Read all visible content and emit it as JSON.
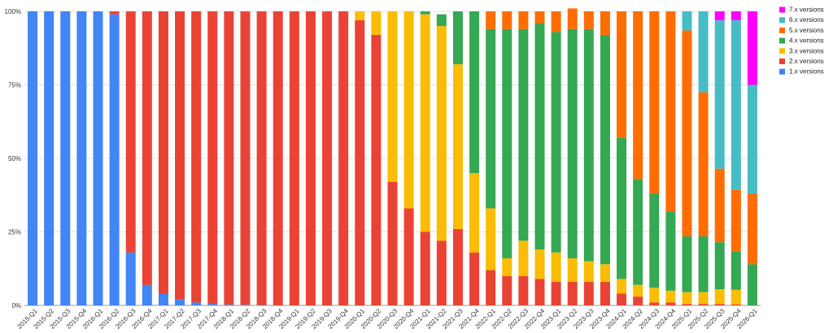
{
  "chart_data": {
    "type": "bar",
    "stacked": true,
    "normalized": true,
    "ylim": [
      0,
      100
    ],
    "y_ticks": [
      "0%",
      "25%",
      "50%",
      "75%",
      "100%"
    ],
    "grid": true,
    "legend_position": "top-right",
    "categories": [
      "2015-Q1",
      "2015-Q2",
      "2015-Q3",
      "2015-Q4",
      "2016-Q1",
      "2016-Q2",
      "2016-Q3",
      "2016-Q4",
      "2017-Q1",
      "2017-Q2",
      "2017-Q3",
      "2017-Q4",
      "2018-Q1",
      "2018-Q2",
      "2018-Q3",
      "2018-Q4",
      "2019-Q1",
      "2019-Q2",
      "2019-Q3",
      "2019-Q4",
      "2020-Q1",
      "2020-Q2",
      "2020-Q3",
      "2020-Q4",
      "2021-Q1",
      "2021-Q2",
      "2021-Q3",
      "2021-Q4",
      "2022-Q1",
      "2022-Q2",
      "2022-Q3",
      "2022-Q4",
      "2023-Q1",
      "2023-Q2",
      "2023-Q3",
      "2023-Q4",
      "2024-Q1",
      "2024-Q2",
      "2024-Q3",
      "2024-Q4",
      "2025-Q1",
      "2025-Q2",
      "2025-Q3",
      "2025-Q4",
      "2026-Q1"
    ],
    "series": [
      {
        "name": "1.x versions",
        "color": "#4285f4",
        "values": [
          100,
          100,
          100,
          100,
          100,
          99,
          18,
          7,
          4,
          2,
          1,
          0.5,
          0.3,
          0.2,
          0.1,
          0,
          0,
          0,
          0,
          0,
          0,
          0,
          0,
          0,
          0,
          0,
          0,
          0,
          0,
          0,
          0,
          0,
          0,
          0,
          0,
          0,
          0,
          0,
          0,
          0,
          0,
          0,
          0,
          0,
          0
        ]
      },
      {
        "name": "2.x versions",
        "color": "#ea4335",
        "values": [
          0,
          0,
          0,
          0,
          0,
          1,
          82,
          93,
          96,
          98,
          99,
          99.5,
          99.7,
          99.8,
          99.9,
          100,
          100,
          100,
          100,
          100,
          97,
          92,
          42,
          33,
          25,
          22,
          26,
          18,
          12,
          10,
          10,
          9,
          8,
          8,
          8,
          8,
          4,
          3,
          1,
          1,
          0.5,
          0.5,
          0.5,
          0.3,
          0
        ]
      },
      {
        "name": "3.x versions",
        "color": "#fbbc04",
        "values": [
          0,
          0,
          0,
          0,
          0,
          0,
          0,
          0,
          0,
          0,
          0,
          0,
          0,
          0,
          0,
          0,
          0,
          0,
          0,
          0,
          3,
          8,
          58,
          67,
          74,
          73,
          56,
          27,
          21,
          6,
          12,
          10,
          10,
          8,
          7,
          6,
          5,
          4,
          5,
          4,
          4,
          4,
          5,
          5,
          0
        ]
      },
      {
        "name": "4.x versions",
        "color": "#34a853",
        "values": [
          0,
          0,
          0,
          0,
          0,
          0,
          0,
          0,
          0,
          0,
          0,
          0,
          0,
          0,
          0,
          0,
          0,
          0,
          0,
          0,
          0,
          0,
          0,
          0,
          1,
          4,
          18,
          55,
          61,
          78,
          72,
          77,
          75,
          78,
          79,
          78,
          48,
          36,
          32,
          27,
          19,
          19,
          16,
          13,
          14
        ]
      },
      {
        "name": "5.x versions",
        "color": "#ff6d01",
        "values": [
          0,
          0,
          0,
          0,
          0,
          0,
          0,
          0,
          0,
          0,
          0,
          0,
          0,
          0,
          0,
          0,
          0,
          0,
          0,
          0,
          0,
          0,
          0,
          0,
          0,
          0,
          0,
          0,
          6,
          6,
          6,
          4,
          7,
          7,
          6,
          8,
          43,
          57,
          62,
          68,
          70,
          49,
          25,
          21,
          24
        ]
      },
      {
        "name": "6.x versions",
        "color": "#46bdc6",
        "values": [
          0,
          0,
          0,
          0,
          0,
          0,
          0,
          0,
          0,
          0,
          0,
          0,
          0,
          0,
          0,
          0,
          0,
          0,
          0,
          0,
          0,
          0,
          0,
          0,
          0,
          0,
          0,
          0,
          0,
          0,
          0,
          0,
          0,
          0,
          0,
          0,
          0,
          0,
          0,
          0,
          6.5,
          27.5,
          50.5,
          57.7,
          37
        ]
      },
      {
        "name": "7.x versions",
        "color": "#ff00ff",
        "values": [
          0,
          0,
          0,
          0,
          0,
          0,
          0,
          0,
          0,
          0,
          0,
          0,
          0,
          0,
          0,
          0,
          0,
          0,
          0,
          0,
          0,
          0,
          0,
          0,
          0,
          0,
          0,
          0,
          0,
          0,
          0,
          0,
          0,
          0,
          0,
          0,
          0,
          0,
          0,
          0,
          0,
          0,
          3,
          3,
          25
        ]
      }
    ]
  }
}
